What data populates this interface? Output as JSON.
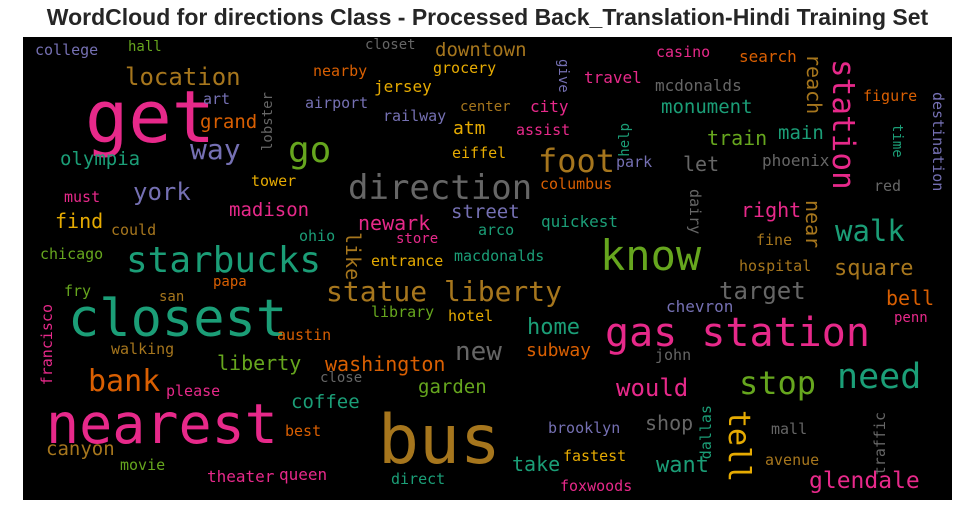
{
  "title": "WordCloud for directions Class - Processed Back_Translation-Hindi Training Set",
  "colors": {
    "background": "#000000",
    "palette": [
      "#e7298a",
      "#1b9e77",
      "#a6761d",
      "#66a61e",
      "#d95f02",
      "#7570b3",
      "#e6ab02",
      "#666666"
    ]
  },
  "words": {
    "college": "college",
    "hall": "hall",
    "closet": "closet",
    "downtown": "downtown",
    "casino": "casino",
    "search": "search",
    "get": "get",
    "location": "location",
    "nearby": "nearby",
    "grocery": "grocery",
    "give": "give",
    "travel": "travel",
    "mcdonalds": "mcdonalds",
    "reach": "reach",
    "station": "station",
    "art": "art",
    "airport": "airport",
    "jersey": "jersey",
    "figure": "figure",
    "center": "center",
    "city": "city",
    "monument": "monument",
    "destination": "destination",
    "lobster": "lobster",
    "railway": "railway",
    "grand": "grand",
    "atm": "atm",
    "assist": "assist",
    "help": "help",
    "main": "main",
    "time": "time",
    "way": "way",
    "go": "go",
    "train": "train",
    "olympia": "olympia",
    "eiffel": "eiffel",
    "foot": "foot",
    "park": "park",
    "let": "let",
    "phoenix": "phoenix",
    "tower": "tower",
    "columbus": "columbus",
    "york": "york",
    "direction": "direction",
    "red": "red",
    "must": "must",
    "madison": "madison",
    "street": "street",
    "dairy": "dairy",
    "right": "right",
    "find": "find",
    "newark": "newark",
    "quickest": "quickest",
    "near": "near",
    "walk": "walk",
    "could": "could",
    "store": "store",
    "arco": "arco",
    "fine": "fine",
    "chicago": "chicago",
    "ohio": "ohio",
    "like": "like",
    "know": "know",
    "starbucks": "starbucks",
    "entrance": "entrance",
    "macdonalds": "macdonalds",
    "hospital": "hospital",
    "square": "square",
    "fry": "fry",
    "papa": "papa",
    "statue_liberty": "statue liberty",
    "target": "target",
    "san": "san",
    "chevron": "chevron",
    "bell": "bell",
    "closest": "closest",
    "library": "library",
    "hotel": "hotel",
    "francisco": "francisco",
    "home": "home",
    "penn": "penn",
    "austin": "austin",
    "gas_station": "gas station",
    "walking": "walking",
    "new": "new",
    "subway": "subway",
    "liberty": "liberty",
    "washington": "washington",
    "john": "john",
    "close": "close",
    "need": "need",
    "stop": "stop",
    "bank": "bank",
    "please": "please",
    "would": "would",
    "garden": "garden",
    "coffee": "coffee",
    "nearest": "nearest",
    "shop": "shop",
    "dallas": "dallas",
    "traffic": "traffic",
    "tell": "tell",
    "best": "best",
    "brooklyn": "brooklyn",
    "mall": "mall",
    "canyon": "canyon",
    "bus": "bus",
    "fastest": "fastest",
    "avenue": "avenue",
    "movie": "movie",
    "take": "take",
    "want": "want",
    "theater": "theater",
    "queen": "queen",
    "glendale": "glendale",
    "direct": "direct",
    "foxwoods": "foxwoods"
  }
}
